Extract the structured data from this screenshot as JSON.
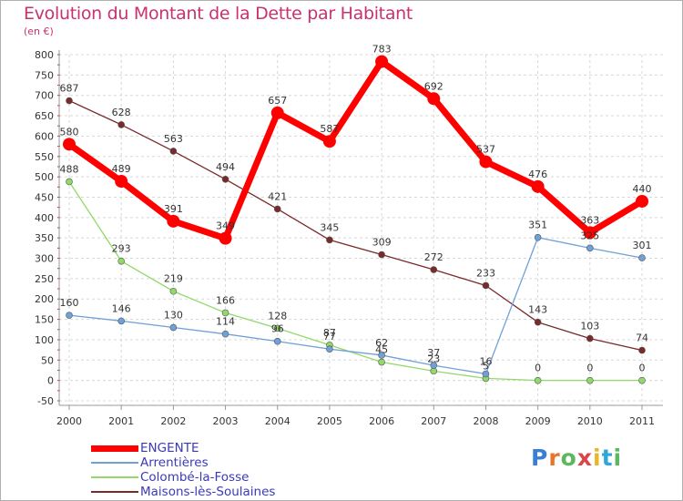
{
  "header": {
    "title": "Evolution du Montant de la Dette par Habitant",
    "subtitle": "(en €)"
  },
  "logo": {
    "text": "Proxiti",
    "colors": [
      "#3a7fd6",
      "#e8762a",
      "#5cb85c",
      "#d9454a",
      "#e8b62a",
      "#2fa8d8",
      "#5cb85c"
    ]
  },
  "chart_data": {
    "type": "line",
    "title": "Evolution du Montant de la Dette par Habitant",
    "subtitle": "(en €)",
    "x": [
      "2000",
      "2001",
      "2002",
      "2003",
      "2004",
      "2005",
      "2006",
      "2007",
      "2008",
      "2009",
      "2010",
      "2011"
    ],
    "ylim": [
      -50,
      800
    ],
    "yticks": [
      -50,
      0,
      50,
      100,
      150,
      200,
      250,
      300,
      350,
      400,
      450,
      500,
      550,
      600,
      650,
      700,
      750,
      800
    ],
    "grid": "horizontal dashed",
    "legend_position": "bottom-left",
    "series": [
      {
        "name": "Maisons-lès-Soulaines",
        "color": "#7a2a2a",
        "values": [
          687,
          628,
          563,
          494,
          421,
          345,
          309,
          272,
          233,
          143,
          103,
          74
        ],
        "labels": [
          "687",
          "628",
          "563",
          "494",
          "421",
          "345",
          "309",
          "272",
          "233",
          "143",
          "103",
          "74"
        ]
      },
      {
        "name": "Colombé-la-Fosse",
        "color": "#90d96a",
        "values": [
          488,
          293,
          219,
          166,
          128,
          87,
          45,
          23,
          5,
          0,
          0,
          0
        ],
        "labels": [
          "488",
          "293",
          "219",
          "166",
          "128",
          "87",
          "45",
          "23",
          "5",
          "0",
          "0",
          "0"
        ]
      },
      {
        "name": "Arrentières",
        "color": "#6fa0d8",
        "values": [
          160,
          146,
          130,
          114,
          96,
          77,
          62,
          37,
          16,
          351,
          325,
          301
        ],
        "labels": [
          "160",
          "146",
          "130",
          "114",
          "96",
          "77",
          "62",
          "37",
          "16",
          "351",
          "325",
          "301"
        ]
      },
      {
        "name": "ENGENTE",
        "color": "#ff0000",
        "values": [
          580,
          489,
          391,
          349,
          657,
          587,
          783,
          692,
          537,
          476,
          363,
          440
        ],
        "labels": [
          "580",
          "489",
          "391",
          "349",
          "657",
          "587",
          "783",
          "692",
          "537",
          "476",
          "363",
          "440"
        ]
      }
    ],
    "legend": [
      "ENGENTE",
      "Arrentières",
      "Colombé-la-Fosse",
      "Maisons-lès-Soulaines"
    ]
  }
}
